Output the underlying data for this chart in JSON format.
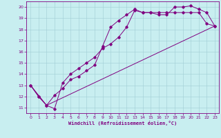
{
  "bg_color": "#c8eef0",
  "line_color": "#800080",
  "xlabel": "Windchill (Refroidissement éolien,°C)",
  "xlim": [
    -0.5,
    23.5
  ],
  "ylim": [
    10.5,
    20.5
  ],
  "xticks": [
    0,
    1,
    2,
    3,
    4,
    5,
    6,
    7,
    8,
    9,
    10,
    11,
    12,
    13,
    14,
    15,
    16,
    17,
    18,
    19,
    20,
    21,
    22,
    23
  ],
  "yticks": [
    11,
    12,
    13,
    14,
    15,
    16,
    17,
    18,
    19,
    20
  ],
  "line1_x": [
    0,
    1,
    2,
    3,
    4,
    5,
    6,
    7,
    8,
    9,
    10,
    11,
    12,
    13,
    14,
    15,
    16,
    17,
    18,
    19,
    20,
    21,
    22,
    23
  ],
  "line1_y": [
    13,
    12,
    11.2,
    10.9,
    13.2,
    14.0,
    14.5,
    15.0,
    15.5,
    16.3,
    16.7,
    17.3,
    18.2,
    19.7,
    19.5,
    19.5,
    19.5,
    19.5,
    19.5,
    19.5,
    19.5,
    19.5,
    18.5,
    18.3
  ],
  "line2_x": [
    0,
    1,
    2,
    3,
    4,
    5,
    6,
    7,
    8,
    9,
    10,
    11,
    12,
    13,
    14,
    15,
    16,
    17,
    18,
    19,
    20,
    21,
    22,
    23
  ],
  "line2_y": [
    13,
    12,
    11.2,
    12.1,
    12.7,
    13.5,
    13.8,
    14.3,
    14.8,
    16.5,
    18.2,
    18.8,
    19.3,
    19.8,
    19.5,
    19.5,
    19.3,
    19.3,
    20.0,
    20.0,
    20.1,
    19.8,
    19.5,
    18.3
  ],
  "line3_x": [
    0,
    2,
    23
  ],
  "line3_y": [
    13,
    11.2,
    18.3
  ]
}
